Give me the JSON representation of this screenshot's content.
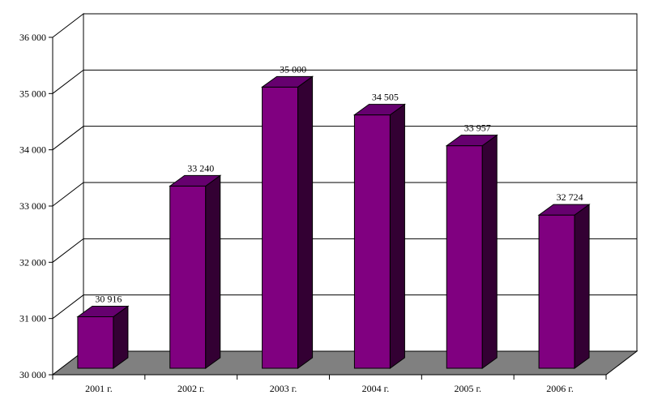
{
  "chart_data": {
    "type": "bar",
    "categories": [
      "2001 г.",
      "2002 г.",
      "2003 г.",
      "2004 г.",
      "2005 г.",
      "2006 г."
    ],
    "values": [
      30916,
      33240,
      35000,
      34505,
      33957,
      32724
    ],
    "value_labels": [
      "30 916",
      "33 240",
      "35 000",
      "34 505",
      "33 957",
      "32 724"
    ],
    "y_ticks": [
      30000,
      31000,
      32000,
      33000,
      34000,
      35000,
      36000
    ],
    "y_tick_labels": [
      "30 000",
      "31 000",
      "32 000",
      "33 000",
      "34 000",
      "35 000",
      "36 000"
    ],
    "ylim": [
      30000,
      36000
    ],
    "grid": true,
    "legend": "none",
    "three_d": true,
    "colors": {
      "bar_front": "#800080",
      "bar_side": "#330033",
      "bar_top": "#66006f",
      "floor": "#808080",
      "grid": "#000000"
    }
  }
}
